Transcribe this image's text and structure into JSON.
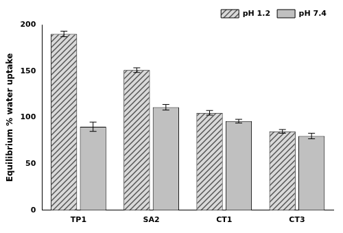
{
  "chart_data": {
    "type": "bar",
    "y_label": "Equilibrium % water uptake",
    "categories": [
      "TP1",
      "SA2",
      "CT1",
      "CT3"
    ],
    "series": [
      {
        "name": "pH 1.2",
        "color": "#d9d9d9",
        "values": [
          190,
          151,
          105,
          85
        ],
        "errors": [
          3,
          2.5,
          2.5,
          2
        ]
      },
      {
        "name": "pH 7.4",
        "color": "#c0c0c0",
        "values": [
          90,
          111,
          96,
          80
        ],
        "errors": [
          5,
          3,
          2,
          3
        ]
      }
    ],
    "ylim": [
      0,
      200
    ],
    "yticks": [
      0,
      50,
      100,
      150,
      200
    ],
    "grid": false,
    "legend": "upper right"
  }
}
